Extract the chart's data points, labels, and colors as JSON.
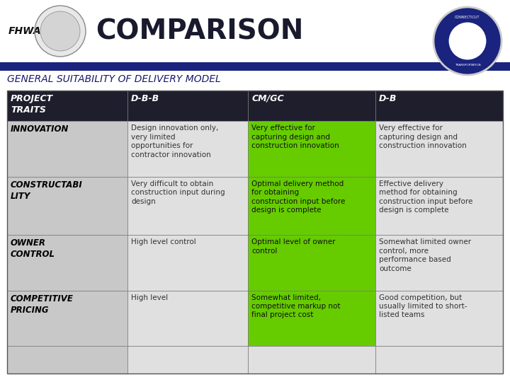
{
  "title": "COMPARISON",
  "subtitle": "GENERAL SUITABILITY OF DELIVERY MODEL",
  "fhwa_label": "FHWA",
  "header_row": [
    "PROJECT\nTRAITS",
    "D-B-B",
    "CM/GC",
    "D-B"
  ],
  "rows": [
    {
      "label": "INNOVATION",
      "dbb": "Design innovation only,\nvery limited\nopportunities for\ncontractor innovation",
      "cmgc": "Very effective for\ncapturing design and\nconstruction innovation",
      "db": "Very effective for\ncapturing design and\nconstruction innovation",
      "cmgc_highlight": true,
      "db_highlight": false
    },
    {
      "label": "CONSTRUCTABI\nLITY",
      "dbb": "Very difficult to obtain\nconstruction input during\ndesign",
      "cmgc": "Optimal delivery method\nfor obtaining\nconstruction input before\ndesign is complete",
      "db": "Effective delivery\nmethod for obtaining\nconstruction input before\ndesign is complete",
      "cmgc_highlight": true,
      "db_highlight": false
    },
    {
      "label": "OWNER\nCONTROL",
      "dbb": "High level control",
      "cmgc": "Optimal level of owner\ncontrol",
      "db": "Somewhat limited owner\ncontrol, more\nperformance based\noutcome",
      "cmgc_highlight": true,
      "db_highlight": false
    },
    {
      "label": "COMPETITIVE\nPRICING",
      "dbb": "High level",
      "cmgc": "Somewhat limited,\ncompetitive markup not\nfinal project cost",
      "db": "Good competition, but\nusually limited to short-\nlisted teams",
      "cmgc_highlight": true,
      "db_highlight": false
    }
  ],
  "colors": {
    "header_bg": "#1e1e2d",
    "header_text": "#ffffff",
    "row_label_bg": "#c8c8c8",
    "row_label_text": "#000000",
    "dbb_bg": "#e0e0e0",
    "cmgc_highlight_bg": "#66cc00",
    "db_bg": "#e0e0e0",
    "grid_line": "#888888",
    "title_color": "#1a1a2e",
    "subtitle_color": "#1a1a6e",
    "background": "#ffffff",
    "header_stripe": "#1a237e",
    "empty_row_col0_bg": "#c8c8c8",
    "empty_row_other_bg": "#e0e0e0"
  },
  "figsize": [
    7.2,
    5.4
  ],
  "dpi": 100
}
